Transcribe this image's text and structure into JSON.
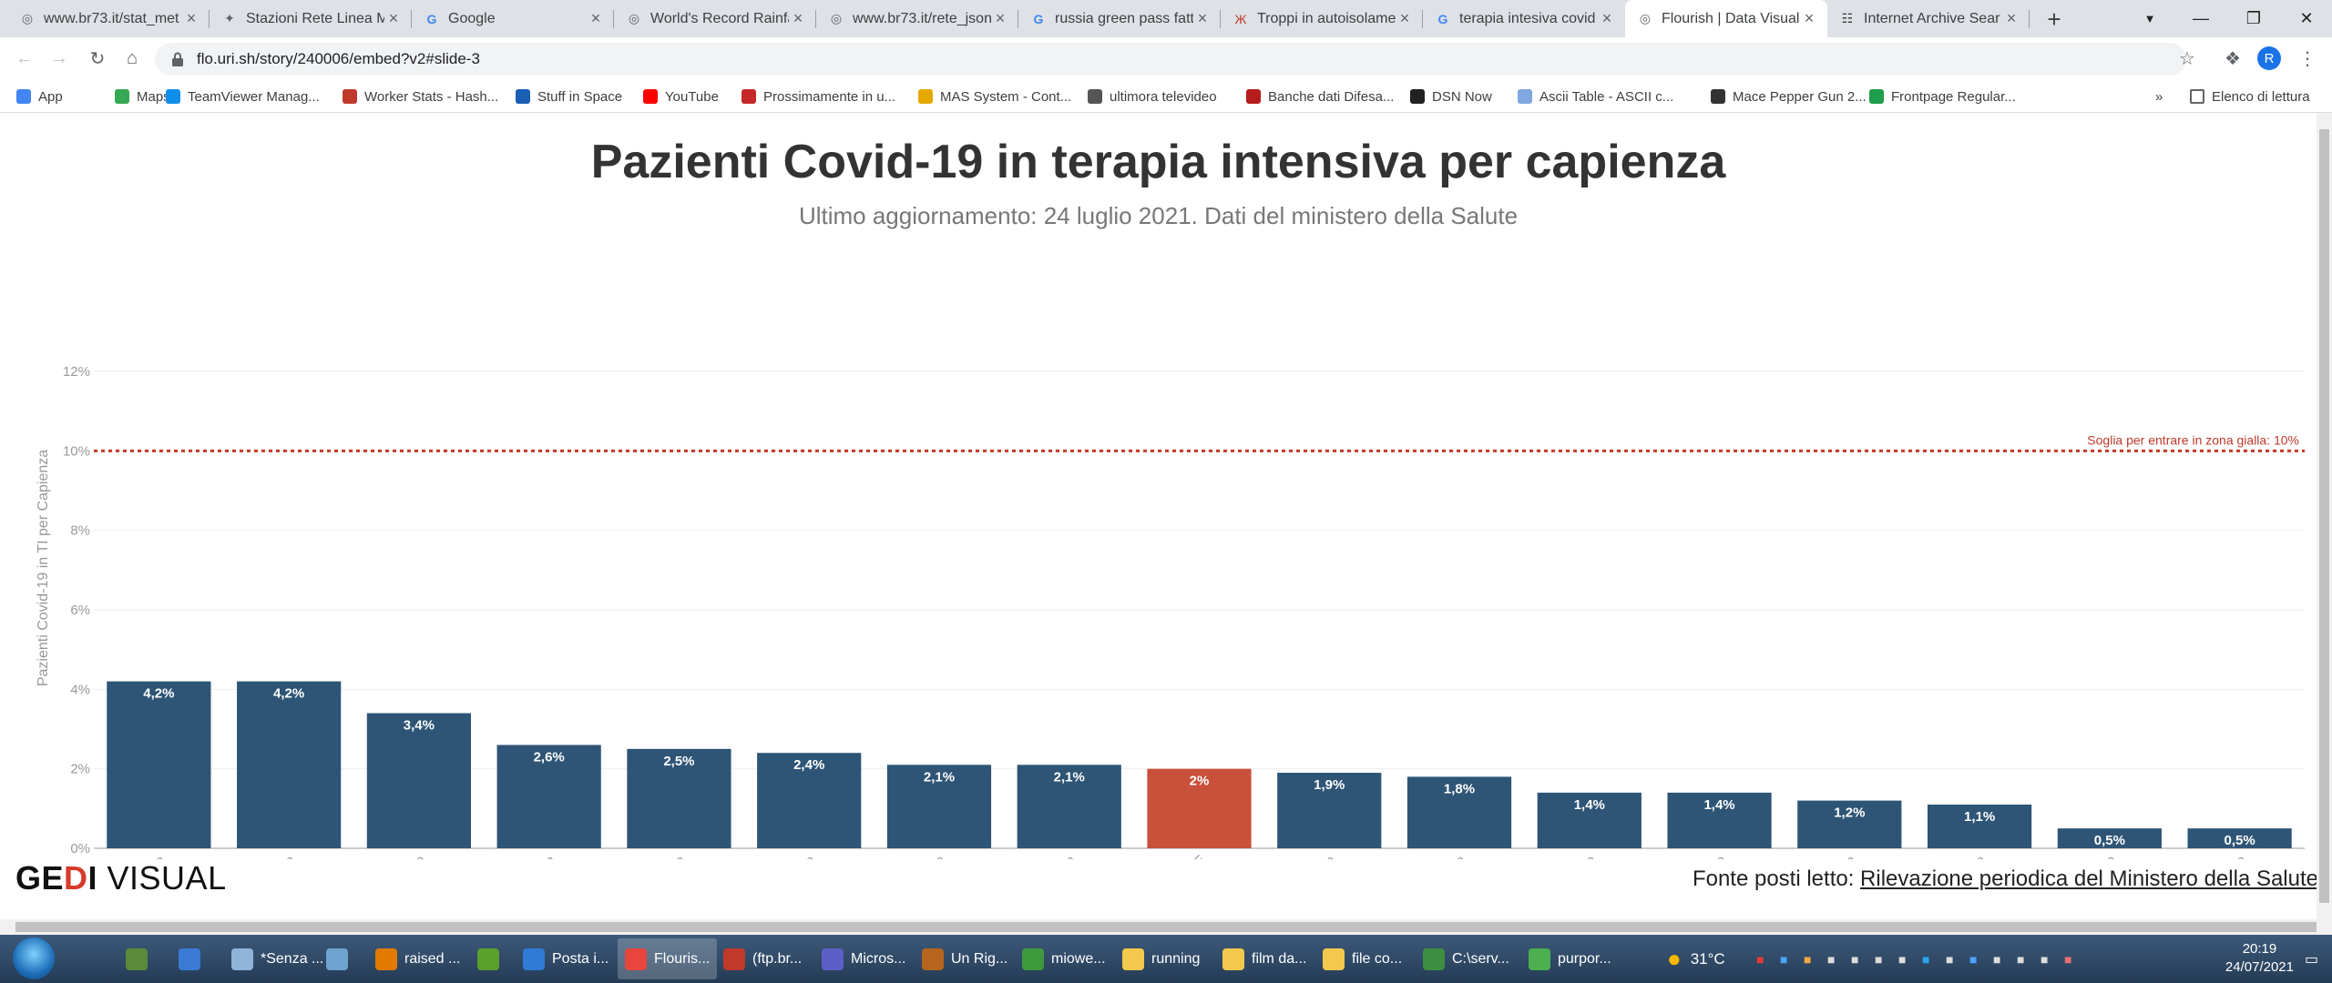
{
  "browser": {
    "tabs": [
      {
        "title": "www.br73.it/stat_met",
        "favicon": "globe-icon",
        "active": false
      },
      {
        "title": "Stazioni Rete Linea M",
        "favicon": "satellite-icon",
        "active": false
      },
      {
        "title": "Google",
        "favicon": "google-icon",
        "active": false
      },
      {
        "title": "World's Record Rainfa",
        "favicon": "globe-icon",
        "active": false
      },
      {
        "title": "www.br73.it/rete_json",
        "favicon": "globe-icon",
        "active": false
      },
      {
        "title": "russia green pass fatt",
        "favicon": "google-icon",
        "active": false
      },
      {
        "title": "Troppi in autoisolame",
        "favicon": "butterfly-icon",
        "active": false
      },
      {
        "title": "terapia intesiva covid",
        "favicon": "google-icon",
        "active": false
      },
      {
        "title": "Flourish | Data Visual",
        "favicon": "globe-icon",
        "active": true
      },
      {
        "title": "Internet Archive Sear",
        "favicon": "archive-icon",
        "active": false
      }
    ],
    "url": "flo.uri.sh/story/240006/embed?v2#slide-3",
    "profile_initial": "R",
    "bookmarks": [
      {
        "label": "App",
        "color": "#4285f4"
      },
      {
        "label": "Maps",
        "color": "#34a853"
      },
      {
        "label": "TeamViewer Manag...",
        "color": "#0e8ee9"
      },
      {
        "label": "Worker Stats - Hash...",
        "color": "#c0392b"
      },
      {
        "label": "Stuff in Space",
        "color": "#1a5fb4"
      },
      {
        "label": "YouTube",
        "color": "#ff0000"
      },
      {
        "label": "Prossimamente in u...",
        "color": "#c62828"
      },
      {
        "label": "MAS System - Cont...",
        "color": "#e6a700"
      },
      {
        "label": "ultimora televideo",
        "color": "#555555"
      },
      {
        "label": "Banche dati Difesa...",
        "color": "#b71c1c"
      },
      {
        "label": "DSN Now",
        "color": "#222222"
      },
      {
        "label": "Ascii Table - ASCII c...",
        "color": "#7fa7e0"
      },
      {
        "label": "Mace Pepper Gun 2...",
        "color": "#333333"
      },
      {
        "label": "Frontpage Regular...",
        "color": "#1e9e4a"
      }
    ],
    "bookmarks_overflow": "»",
    "reading_list": "Elenco di lettura"
  },
  "chart_data": {
    "type": "bar",
    "title": "Pazienti Covid-19 in terapia intensiva per capienza",
    "subtitle": "Ultimo aggiornamento: 24 luglio 2021. Dati del ministero della Salute",
    "ylabel": "Pazienti Covid-19 in TI per Capienza",
    "ylim": [
      0,
      12
    ],
    "yticks": [
      "0%",
      "2%",
      "4%",
      "6%",
      "8%",
      "10%",
      "12%"
    ],
    "grid": true,
    "categories": [
      "Sicilia",
      "Sardegna",
      "Lazio",
      "Calabria",
      "Toscana",
      "Liguria",
      "Campania",
      "Umbria",
      "MEDIA NAZIONALE",
      "Puglia",
      "Lombardia",
      "Marche",
      "Veneto",
      "Emilia-Romagna",
      "Friuli-Venezia Giulia",
      "Abruzzo",
      "Piemonte"
    ],
    "values": [
      4.2,
      4.2,
      3.4,
      2.6,
      2.5,
      2.4,
      2.1,
      2.1,
      2.0,
      1.9,
      1.8,
      1.4,
      1.4,
      1.2,
      1.1,
      0.5,
      0.5
    ],
    "labels": [
      "4,2%",
      "4,2%",
      "3,4%",
      "2,6%",
      "2,5%",
      "2,4%",
      "2,1%",
      "2,1%",
      "2%",
      "1,9%",
      "1,8%",
      "1,4%",
      "1,4%",
      "1,2%",
      "1,1%",
      "0,5%",
      "0,5%"
    ],
    "colors": {
      "bar": "#2e5576",
      "highlight": "#c9503a",
      "threshold": "#c0392b"
    },
    "highlight_category": "MEDIA NAZIONALE",
    "threshold": {
      "value": 10,
      "label": "Soglia per entrare in zona gialla: 10%"
    }
  },
  "footer": {
    "brand_ge": "GE",
    "brand_d": "D",
    "brand_i": "I",
    "brand_rest": " VISUAL",
    "source_prefix": "Fonte posti letto: ",
    "source_link": "Rilevazione periodica del Ministero della Salute"
  },
  "taskbar": {
    "items": [
      {
        "label": "",
        "color": "#5a8a3a"
      },
      {
        "label": "",
        "color": "#3a7bd5"
      },
      {
        "label": "*Senza ...",
        "color": "#8fb3d9"
      },
      {
        "label": "",
        "color": "#6fa3d0"
      },
      {
        "label": "raised ...",
        "color": "#e07b00"
      },
      {
        "label": "",
        "color": "#5aa02c"
      },
      {
        "label": "Posta i...",
        "color": "#2f7bd6"
      },
      {
        "label": "Flouris...",
        "color": "#e8453c"
      },
      {
        "label": "(ftp.br...",
        "color": "#c0392b"
      },
      {
        "label": "Micros...",
        "color": "#5b5fc7"
      },
      {
        "label": "Un Rig...",
        "color": "#b5651d"
      },
      {
        "label": "miowe...",
        "color": "#3c9a3c"
      },
      {
        "label": "running",
        "color": "#f2c94c"
      },
      {
        "label": "film da...",
        "color": "#f2c94c"
      },
      {
        "label": "file co...",
        "color": "#f2c94c"
      },
      {
        "label": "C:\\serv...",
        "color": "#3e8e41"
      },
      {
        "label": "purpor...",
        "color": "#4caf50"
      }
    ],
    "weather": "31°C",
    "time": "20:19",
    "date": "24/07/2021"
  }
}
